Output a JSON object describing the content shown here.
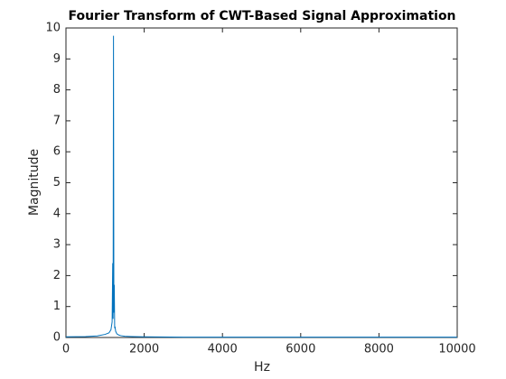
{
  "chart_data": {
    "type": "line",
    "title": "Fourier Transform of CWT-Based Signal Approximation",
    "xlabel": "Hz",
    "ylabel": "Magnitude",
    "x": [
      0,
      500,
      800,
      1000,
      1100,
      1150,
      1180,
      1195,
      1205,
      1215,
      1225,
      1235,
      1245,
      1255,
      1270,
      1300,
      1350,
      1400,
      1500,
      1700,
      2000,
      3000,
      5000,
      7000,
      9000,
      10000
    ],
    "values": [
      0.02,
      0.03,
      0.05,
      0.1,
      0.15,
      0.25,
      0.5,
      2.4,
      0.6,
      9.75,
      0.8,
      1.7,
      0.3,
      0.35,
      0.2,
      0.12,
      0.08,
      0.06,
      0.04,
      0.03,
      0.02,
      0.01,
      0.01,
      0.01,
      0.01,
      0.01
    ],
    "color": "#0072bd",
    "xlim": [
      0,
      10000
    ],
    "xticks": [
      0,
      2000,
      4000,
      6000,
      8000,
      10000
    ],
    "ylim": [
      0,
      10
    ],
    "yticks": [
      0,
      1,
      2,
      3,
      4,
      5,
      6,
      7,
      8,
      9,
      10
    ],
    "grid": false
  }
}
